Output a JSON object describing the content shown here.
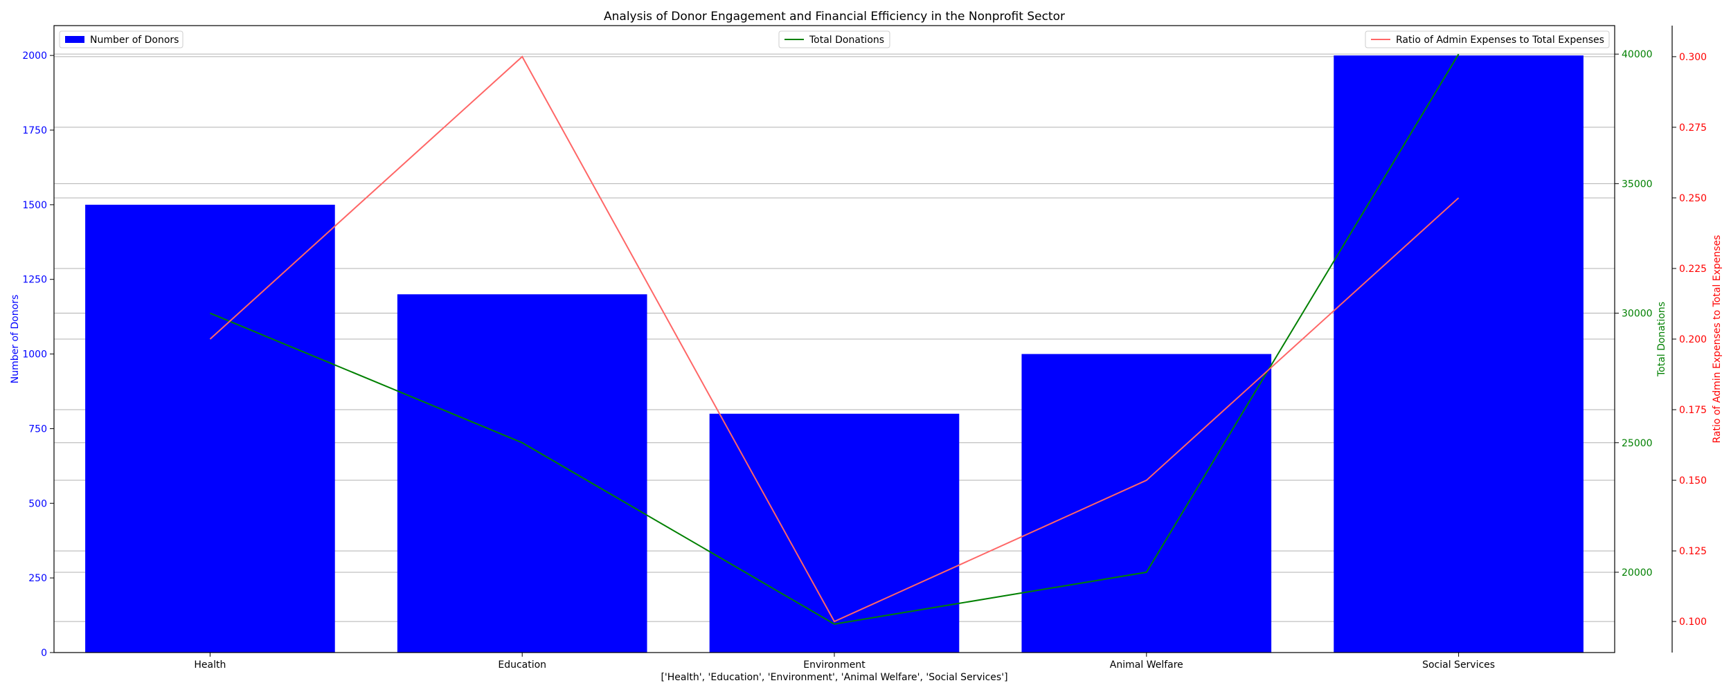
{
  "chart_data": {
    "type": "bar+line",
    "title": "Analysis of Donor Engagement and Financial Efficiency in the Nonprofit Sector",
    "xlabel": "['Health', 'Education', 'Environment', 'Animal Welfare', 'Social Services']",
    "categories": [
      "Health",
      "Education",
      "Environment",
      "Animal Welfare",
      "Social Services"
    ],
    "series": [
      {
        "name": "Number of Donors",
        "kind": "bar",
        "axis": "left",
        "color": "#0000ff",
        "values": [
          1500,
          1200,
          800,
          1000,
          2000
        ]
      },
      {
        "name": "Total Donations",
        "kind": "line",
        "axis": "right",
        "color": "#008000",
        "values": [
          30000,
          25000,
          18000,
          20000,
          40000
        ]
      },
      {
        "name": "Ratio of Admin Expenses to Total Expenses",
        "kind": "line",
        "axis": "right-outer",
        "color": "#ff6666",
        "values": [
          0.2,
          0.3,
          0.1,
          0.15,
          0.25
        ]
      }
    ],
    "axes": {
      "left": {
        "label": "Number of Donors",
        "color": "#0000ff",
        "ylim": [
          0,
          2100
        ],
        "ticks": [
          0,
          250,
          500,
          750,
          1000,
          1250,
          1500,
          1750,
          2000
        ],
        "tick_labels": [
          "0",
          "250",
          "500",
          "750",
          "1000",
          "1250",
          "1500",
          "1750",
          "2000"
        ]
      },
      "right": {
        "label": "Total Donations",
        "color": "#008000",
        "ylim": [
          16900,
          41100
        ],
        "ticks": [
          20000,
          25000,
          30000,
          35000,
          40000
        ],
        "tick_labels": [
          "20000",
          "25000",
          "30000",
          "35000",
          "40000"
        ]
      },
      "right_outer": {
        "label": "Ratio of Admin Expenses to Total Expenses",
        "color": "#ff0000",
        "ylim": [
          0.089,
          0.311
        ],
        "ticks": [
          0.1,
          0.125,
          0.15,
          0.175,
          0.2,
          0.225,
          0.25,
          0.275,
          0.3
        ],
        "tick_labels": [
          "0.100",
          "0.125",
          "0.150",
          "0.175",
          "0.200",
          "0.225",
          "0.250",
          "0.275",
          "0.300"
        ]
      }
    },
    "grid": true,
    "legends": [
      {
        "series": "Number of Donors",
        "placement": "upper left"
      },
      {
        "series": "Total Donations",
        "placement": "upper center"
      },
      {
        "series": "Ratio of Admin Expenses to Total Expenses",
        "placement": "upper right"
      }
    ]
  }
}
